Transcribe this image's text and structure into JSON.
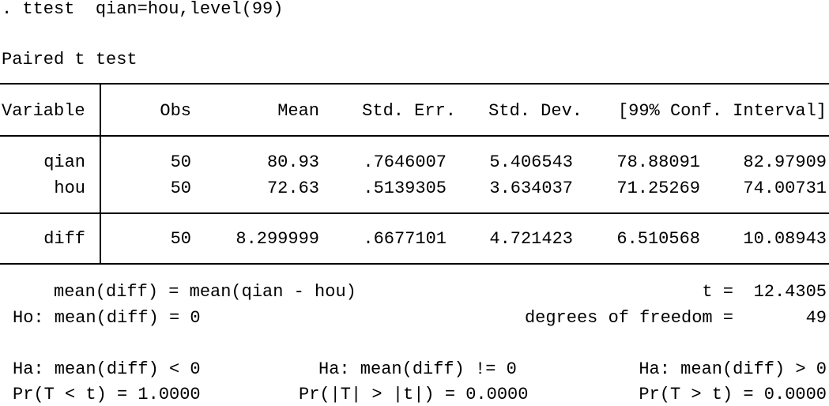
{
  "command": ". ttest  qian=hou,level(99)",
  "title": "Paired t test",
  "table": {
    "header": [
      "Variable",
      "Obs",
      "Mean",
      "Std. Err.",
      "Std. Dev.",
      "[99% Conf. Interval]"
    ],
    "rows": [
      [
        "qian",
        "50",
        "80.93",
        ".7646007",
        "5.406543",
        "78.88091",
        "82.97909"
      ],
      [
        "hou",
        "50",
        "72.63",
        ".5139305",
        "3.634037",
        "71.25269",
        "74.00731"
      ],
      [
        "diff",
        "50",
        "8.299999",
        ".6677101",
        "4.721423",
        "6.510568",
        "10.08943"
      ]
    ]
  },
  "summary": {
    "mean_def": "mean(diff) = mean(qian - hou)",
    "t_label": "t =",
    "t_value": "12.4305",
    "ho": "Ho: mean(diff) = 0",
    "df_label": "degrees of freedom =",
    "df_value": "49"
  },
  "hypotheses": [
    {
      "ha": "Ha: mean(diff) < 0",
      "p": "Pr(T < t) = 1.0000"
    },
    {
      "ha": "Ha: mean(diff) != 0",
      "p": "Pr(|T| > |t|) = 0.0000"
    },
    {
      "ha": "Ha: mean(diff) > 0",
      "p": "Pr(T > t) = 0.0000"
    }
  ]
}
